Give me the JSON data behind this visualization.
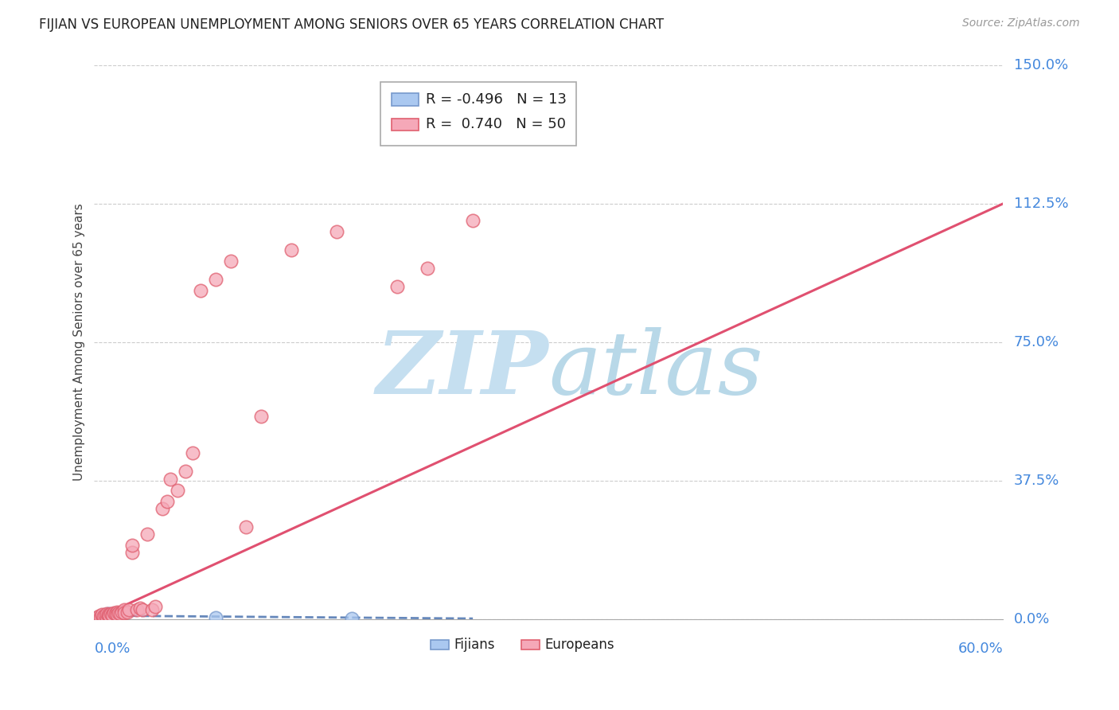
{
  "title": "FIJIAN VS EUROPEAN UNEMPLOYMENT AMONG SENIORS OVER 65 YEARS CORRELATION CHART",
  "source": "Source: ZipAtlas.com",
  "ylabel": "Unemployment Among Seniors over 65 years",
  "xlim": [
    0.0,
    0.6
  ],
  "ylim": [
    0.0,
    1.5
  ],
  "ytick_labels": [
    "0.0%",
    "37.5%",
    "75.0%",
    "112.5%",
    "150.0%"
  ],
  "ytick_values": [
    0.0,
    0.375,
    0.75,
    1.125,
    1.5
  ],
  "grid_color": "#cccccc",
  "background_color": "#ffffff",
  "legend_fijians_R": "-0.496",
  "legend_fijians_N": "13",
  "legend_europeans_R": "0.740",
  "legend_europeans_N": "50",
  "fijian_color": "#aac8f0",
  "european_color": "#f5a8b8",
  "fijian_edge_color": "#7799cc",
  "european_edge_color": "#e06070",
  "fijian_line_color": "#6688bb",
  "european_line_color": "#e05070",
  "title_color": "#222222",
  "axis_label_color": "#444444",
  "tick_label_color": "#4488dd",
  "source_color": "#999999",
  "fijians_x": [
    0.002,
    0.004,
    0.005,
    0.006,
    0.007,
    0.008,
    0.009,
    0.01,
    0.011,
    0.012,
    0.015,
    0.08,
    0.17
  ],
  "fijians_y": [
    0.005,
    0.008,
    0.006,
    0.01,
    0.012,
    0.008,
    0.015,
    0.01,
    0.012,
    0.008,
    0.01,
    0.005,
    0.003
  ],
  "europeans_x": [
    0.002,
    0.003,
    0.004,
    0.005,
    0.005,
    0.006,
    0.007,
    0.008,
    0.008,
    0.009,
    0.01,
    0.01,
    0.011,
    0.012,
    0.012,
    0.013,
    0.014,
    0.015,
    0.015,
    0.016,
    0.017,
    0.018,
    0.02,
    0.02,
    0.022,
    0.023,
    0.025,
    0.025,
    0.028,
    0.03,
    0.032,
    0.035,
    0.038,
    0.04,
    0.045,
    0.048,
    0.05,
    0.055,
    0.06,
    0.065,
    0.07,
    0.08,
    0.09,
    0.1,
    0.11,
    0.13,
    0.16,
    0.2,
    0.22,
    0.25
  ],
  "europeans_y": [
    0.005,
    0.008,
    0.006,
    0.01,
    0.012,
    0.008,
    0.01,
    0.005,
    0.015,
    0.012,
    0.008,
    0.01,
    0.015,
    0.012,
    0.01,
    0.018,
    0.015,
    0.02,
    0.012,
    0.018,
    0.015,
    0.02,
    0.025,
    0.018,
    0.02,
    0.025,
    0.18,
    0.2,
    0.025,
    0.03,
    0.025,
    0.23,
    0.025,
    0.035,
    0.3,
    0.32,
    0.38,
    0.35,
    0.4,
    0.45,
    0.89,
    0.92,
    0.97,
    0.25,
    0.55,
    1.0,
    1.05,
    0.9,
    0.95,
    1.08
  ],
  "eur_trendline_x": [
    0.0,
    0.6
  ],
  "eur_trendline_y": [
    0.0,
    1.125
  ],
  "fij_trendline_x": [
    0.0,
    0.25
  ],
  "fij_trendline_y": [
    0.01,
    0.002
  ],
  "watermark_zip_color": "#c5dff0",
  "watermark_atlas_color": "#b8d8e8"
}
